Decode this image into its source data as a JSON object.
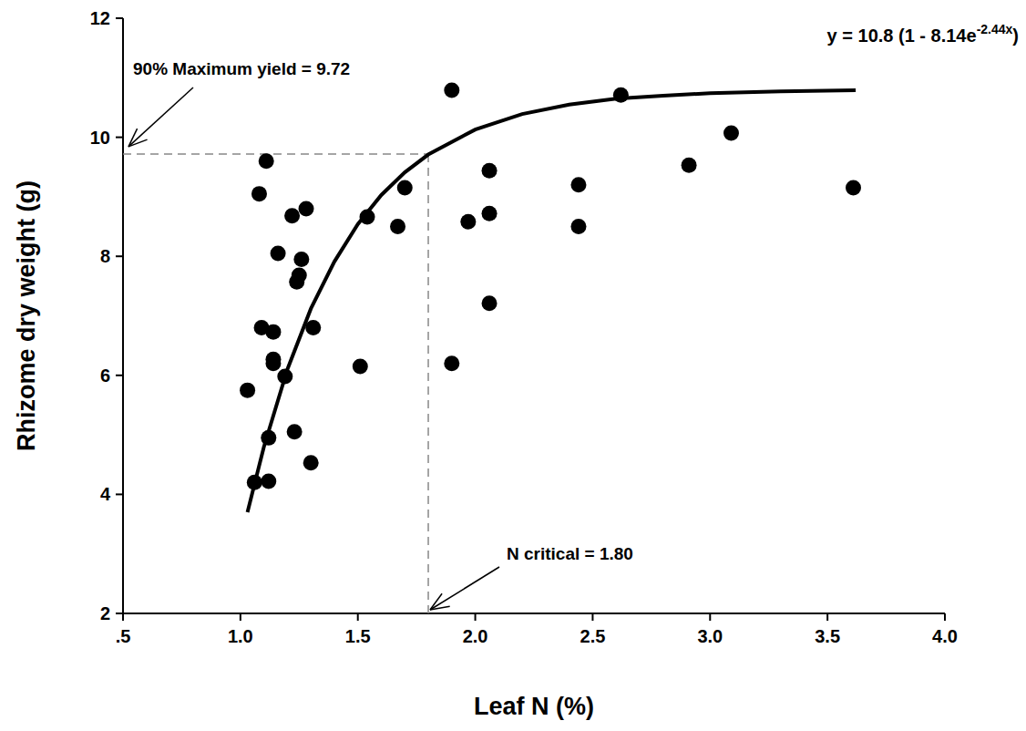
{
  "chart_data": {
    "type": "scatter",
    "x_label": "Leaf N (%)",
    "y_label": "Rhizome dry weight (g)",
    "xlim": [
      0.5,
      4.0
    ],
    "ylim": [
      2,
      12
    ],
    "xticks": [
      {
        "value": 0.5,
        "label": ".5"
      },
      {
        "value": 1.0,
        "label": "1.0"
      },
      {
        "value": 1.5,
        "label": "1.5"
      },
      {
        "value": 2.0,
        "label": "2.0"
      },
      {
        "value": 2.5,
        "label": "2.5"
      },
      {
        "value": 3.0,
        "label": "3.0"
      },
      {
        "value": 3.5,
        "label": "3.5"
      },
      {
        "value": 4.0,
        "label": "4.0"
      }
    ],
    "yticks": [
      2,
      4,
      6,
      8,
      10,
      12
    ],
    "grid": false,
    "series": [
      {
        "type": "scatter",
        "color": "#000000",
        "marker": "circle",
        "x": [
          1.03,
          1.06,
          1.08,
          1.09,
          1.11,
          1.12,
          1.12,
          1.14,
          1.14,
          1.14,
          1.16,
          1.19,
          1.22,
          1.23,
          1.24,
          1.25,
          1.26,
          1.28,
          1.3,
          1.31,
          1.51,
          1.54,
          1.67,
          1.7,
          1.9,
          1.9,
          1.97,
          2.06,
          2.06,
          2.06,
          2.44,
          2.44,
          2.62,
          2.91,
          3.09,
          3.61
        ],
        "values": [
          5.75,
          4.2,
          9.05,
          6.8,
          9.6,
          4.95,
          4.22,
          6.73,
          6.2,
          6.27,
          8.05,
          5.98,
          8.68,
          5.05,
          7.57,
          7.68,
          7.95,
          8.8,
          4.53,
          6.8,
          6.15,
          8.66,
          8.5,
          9.15,
          10.79,
          6.2,
          8.58,
          9.44,
          8.72,
          7.21,
          9.2,
          8.5,
          10.71,
          9.53,
          10.07,
          9.15
        ]
      },
      {
        "type": "line",
        "color": "#000000",
        "line_style": "solid",
        "x": [
          1.03,
          1.1,
          1.2,
          1.3,
          1.4,
          1.5,
          1.6,
          1.7,
          1.8,
          2.0,
          2.2,
          2.4,
          2.6,
          2.8,
          3.0,
          3.3,
          3.62
        ],
        "values": [
          3.7,
          4.8,
          6.1,
          7.12,
          7.91,
          8.54,
          9.03,
          9.41,
          9.71,
          10.13,
          10.39,
          10.55,
          10.65,
          10.7,
          10.74,
          10.77,
          10.79
        ]
      }
    ],
    "equation": {
      "text": "y = 10.8 (1 - 8.14e",
      "superscript": "-2.44x",
      "suffix": ")"
    },
    "reference_lines": {
      "x": 1.8,
      "y": 9.72
    },
    "annotations": [
      {
        "text": "90% Maximum yield = 9.72",
        "x": 0.5,
        "y": 9.72
      },
      {
        "text": "N critical = 1.80",
        "x": 1.8,
        "y": 2
      }
    ]
  }
}
